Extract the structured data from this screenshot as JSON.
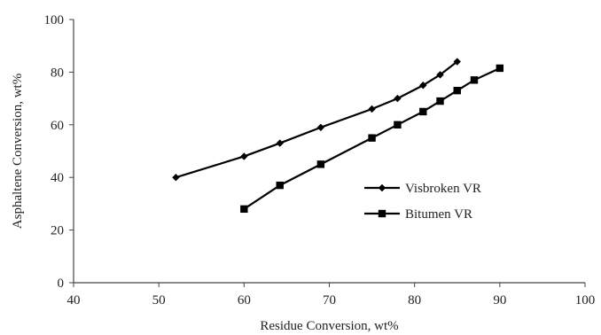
{
  "chart_data": {
    "type": "line",
    "xlabel": "Residue Conversion, wt%",
    "ylabel": "Asphaltene Conversion, wt%",
    "xlim": [
      40,
      100
    ],
    "ylim": [
      0,
      100
    ],
    "xticks": [
      "40",
      "50",
      "60",
      "70",
      "80",
      "90",
      "100"
    ],
    "yticks": [
      "0",
      "20",
      "40",
      "60",
      "80",
      "100"
    ],
    "grid": false,
    "legend_position": "center-right",
    "series": [
      {
        "name": "Visbroken VR",
        "marker": "diamond",
        "color": "#000000",
        "x": [
          52,
          60,
          64.2,
          69,
          75,
          78,
          81,
          83,
          85
        ],
        "y": [
          40,
          48,
          53,
          59,
          66,
          70,
          75,
          79,
          84
        ]
      },
      {
        "name": "Bitumen VR",
        "marker": "square",
        "color": "#000000",
        "x": [
          60,
          64.2,
          69,
          75,
          78,
          81,
          83,
          85,
          87,
          90
        ],
        "y": [
          28,
          37,
          45,
          55,
          60,
          65,
          69,
          73,
          77,
          81.5
        ]
      }
    ]
  }
}
